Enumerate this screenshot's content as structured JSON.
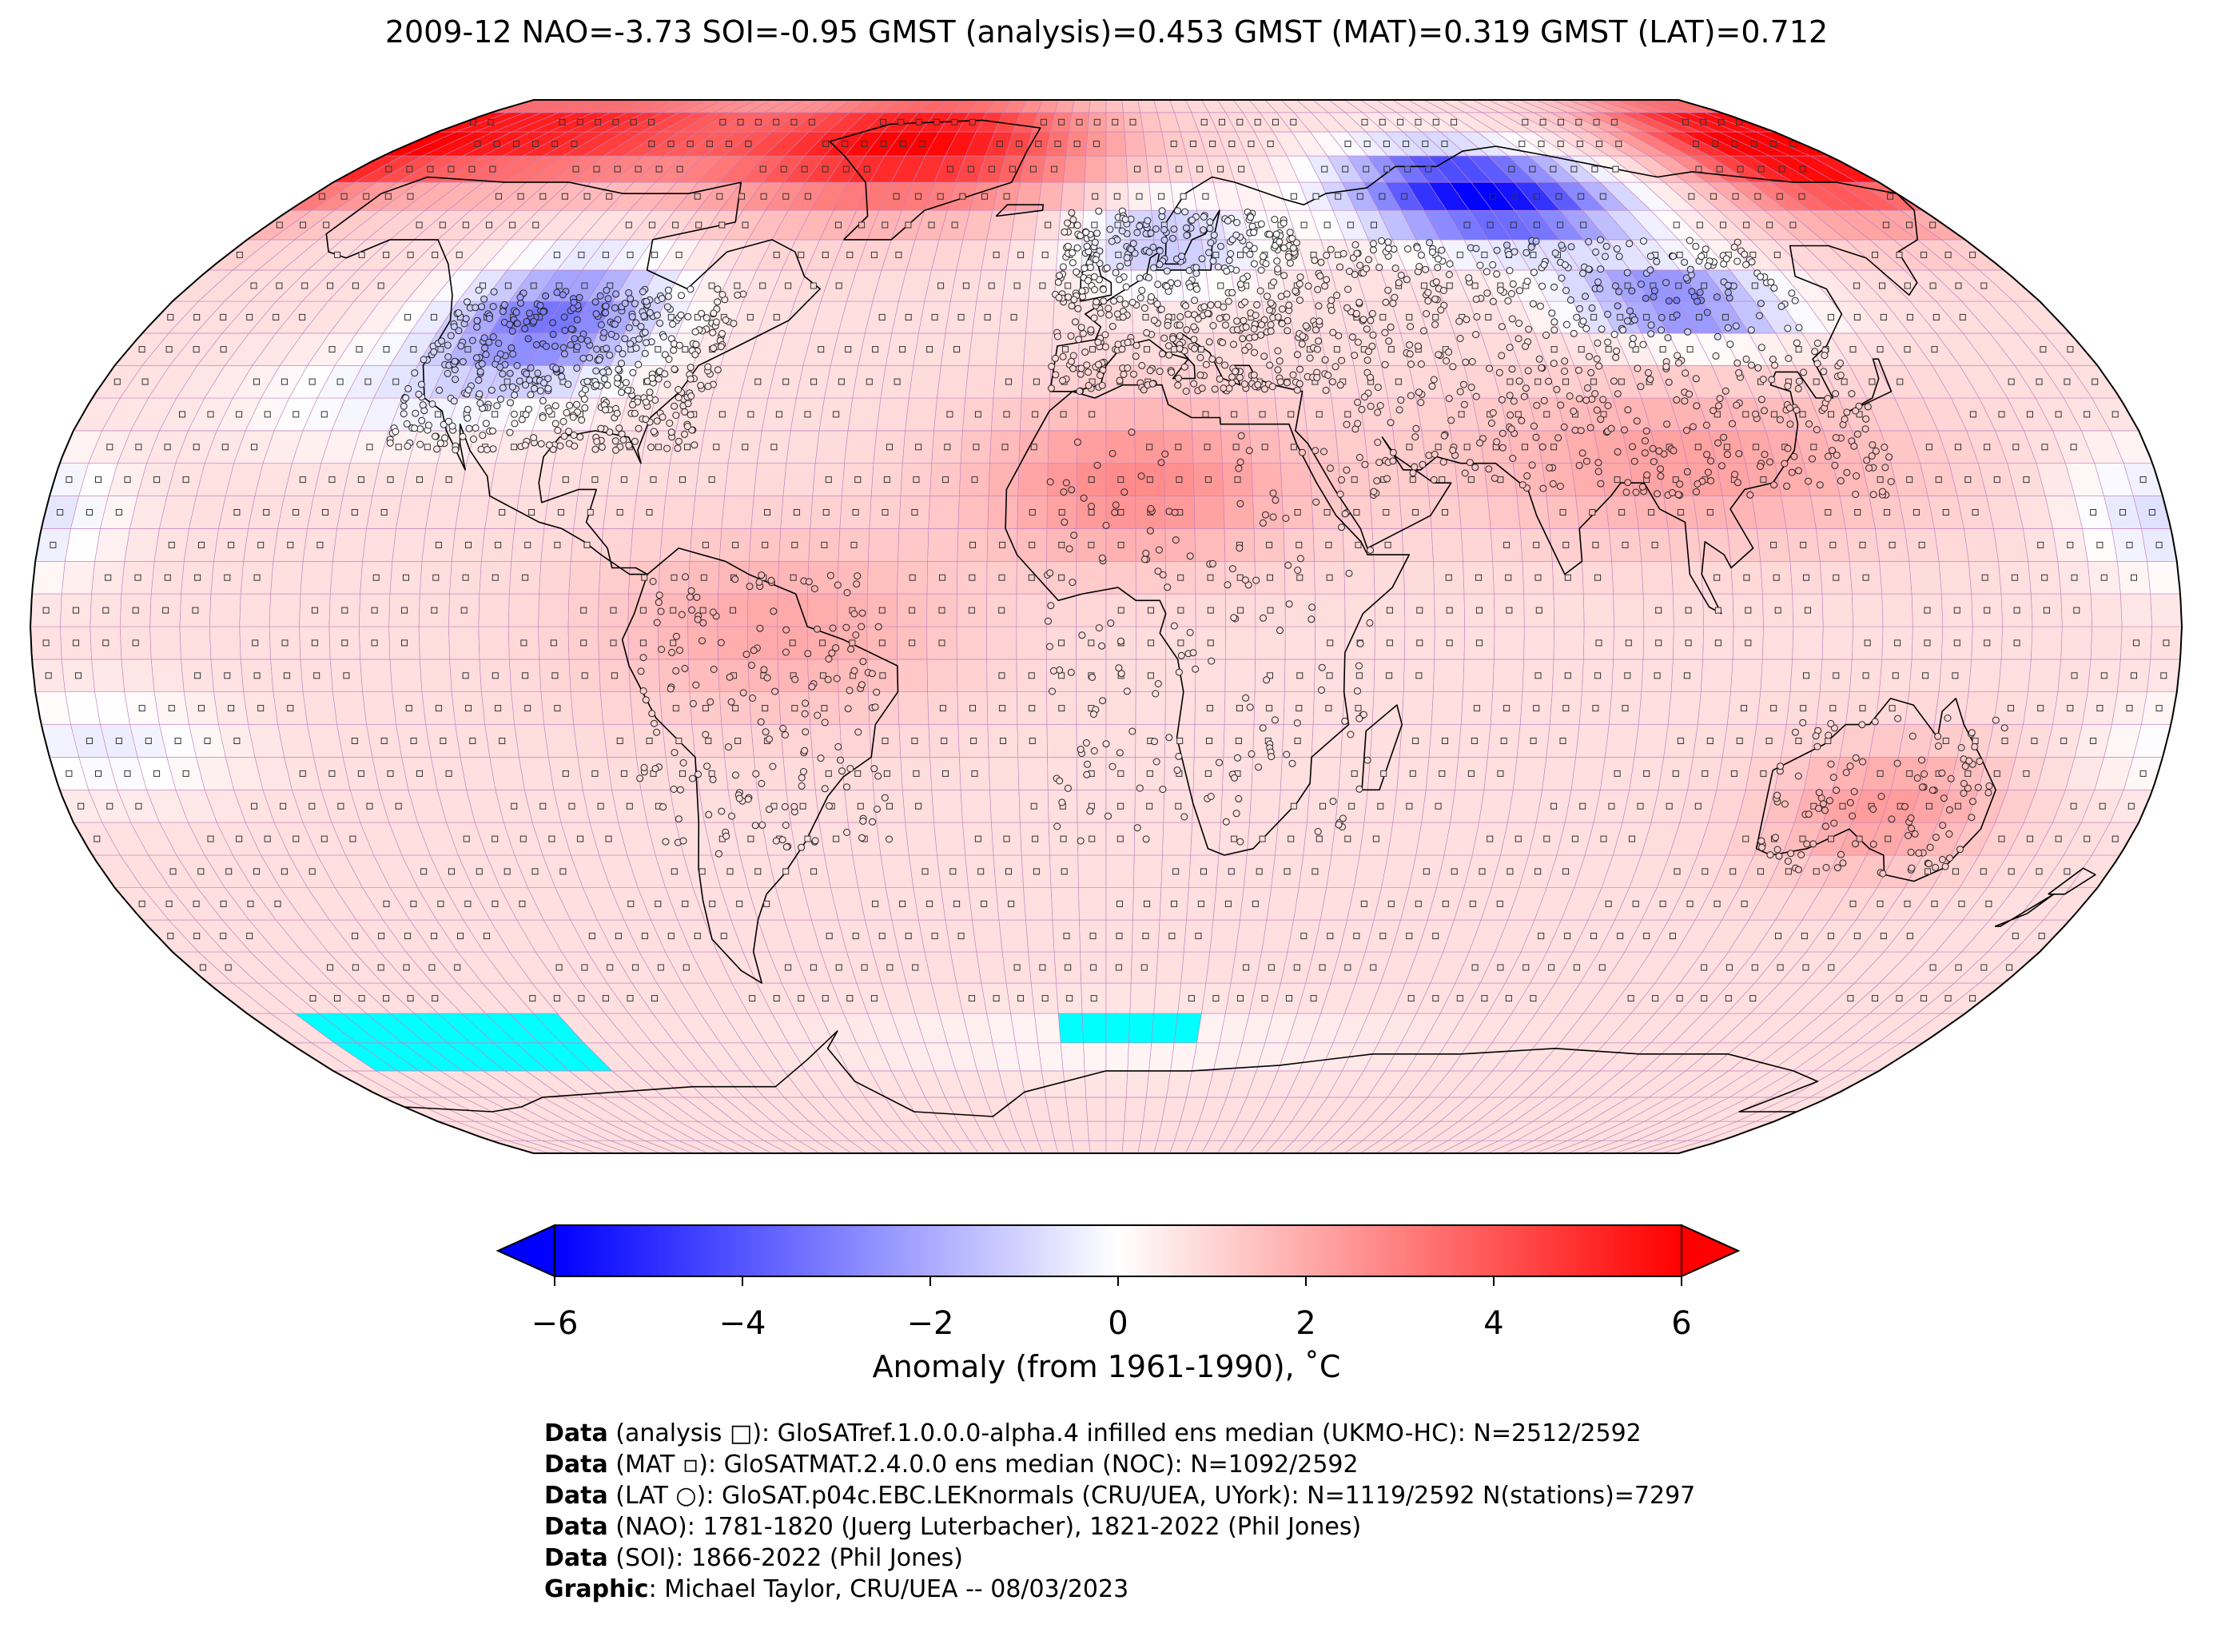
{
  "title": "2009-12 NAO=-3.73 SOI=-0.95 GMST (analysis)=0.453 GMST (MAT)=0.319 GMST (LAT)=0.712",
  "colorbar": {
    "label": "Anomaly (from 1961-1990), ˚C",
    "ticks": [
      "−6",
      "−4",
      "−2",
      "0",
      "2",
      "4",
      "6"
    ],
    "range": [
      -6,
      6
    ],
    "cmap": "bwr",
    "extend": "both"
  },
  "colors": {
    "cold_max": "#0000ff",
    "neutral": "#ffffff",
    "warm_max": "#ff0000",
    "no_data_fill": "#00ffff",
    "grid_lines": "#c080c0"
  },
  "map": {
    "projection": "Robinson",
    "grid_resolution_deg": 5,
    "anomaly_regions": [
      {
        "region": "Arctic Canada / Greenland",
        "anomaly_c": 5.5
      },
      {
        "region": "Western Siberia",
        "anomaly_c": -5.5
      },
      {
        "region": "North America interior",
        "anomaly_c": -3.0
      },
      {
        "region": "Northern Europe",
        "anomaly_c": -2.0
      },
      {
        "region": "Eastern Siberia / Alaska",
        "anomaly_c": 4.5
      },
      {
        "region": "North Africa / Sahara",
        "anomaly_c": 2.5
      },
      {
        "region": "Tropical oceans",
        "anomaly_c": 0.8
      },
      {
        "region": "Southern Ocean",
        "anomaly_c": 0.5
      }
    ]
  },
  "legend_symbols": {
    "analysis": "□",
    "mat": "▫",
    "lat": "○"
  },
  "credits": [
    {
      "bold": "Data",
      "text": " (analysis □): GloSATref.1.0.0.0-alpha.4 infilled ens median (UKMO-HC): N=2512/2592"
    },
    {
      "bold": "Data",
      "text": " (MAT ▫): GloSATMAT.2.4.0.0 ens median (NOC): N=1092/2592"
    },
    {
      "bold": "Data",
      "text": " (LAT ○): GloSAT.p04c.EBC.LEKnormals (CRU/UEA, UYork): N=1119/2592 N(stations)=7297"
    },
    {
      "bold": "Data",
      "text": " (NAO): 1781-1820 (Juerg Luterbacher), 1821-2022 (Phil Jones)"
    },
    {
      "bold": "Data",
      "text": " (SOI): 1866-2022 (Phil Jones)"
    },
    {
      "bold": "Graphic",
      "text": ": Michael Taylor, CRU/UEA -- 08/03/2023"
    }
  ]
}
